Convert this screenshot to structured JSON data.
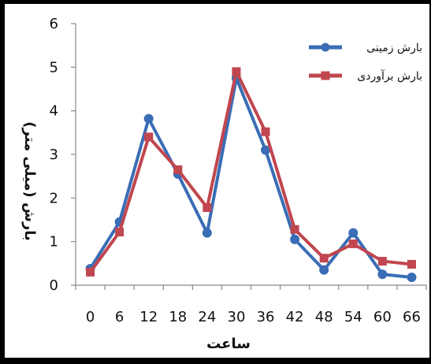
{
  "chart_data": {
    "type": "line",
    "x": [
      0,
      6,
      12,
      18,
      24,
      30,
      36,
      42,
      48,
      54,
      60,
      66
    ],
    "series": [
      {
        "name": "بارش زمینی",
        "color": "#3a6db5",
        "marker": "circle",
        "values": [
          0.38,
          1.45,
          3.82,
          2.55,
          1.2,
          4.75,
          3.1,
          1.05,
          0.35,
          1.2,
          0.25,
          0.18
        ]
      },
      {
        "name": "بارش برآوردی",
        "color": "#c0464f",
        "marker": "square",
        "values": [
          0.3,
          1.22,
          3.4,
          2.65,
          1.78,
          4.9,
          3.52,
          1.28,
          0.62,
          0.95,
          0.55,
          0.48
        ]
      }
    ],
    "xlabel": "ساعت",
    "ylabel": "بارش (میلی متر)",
    "ylim": [
      0,
      6
    ],
    "yticks": [
      "0",
      "1",
      "2",
      "3",
      "4",
      "5",
      "6"
    ],
    "xticks": [
      "0",
      "6",
      "12",
      "18",
      "24",
      "30",
      "36",
      "42",
      "48",
      "54",
      "60",
      "66"
    ],
    "grid": false,
    "legend_position": "top-right"
  }
}
